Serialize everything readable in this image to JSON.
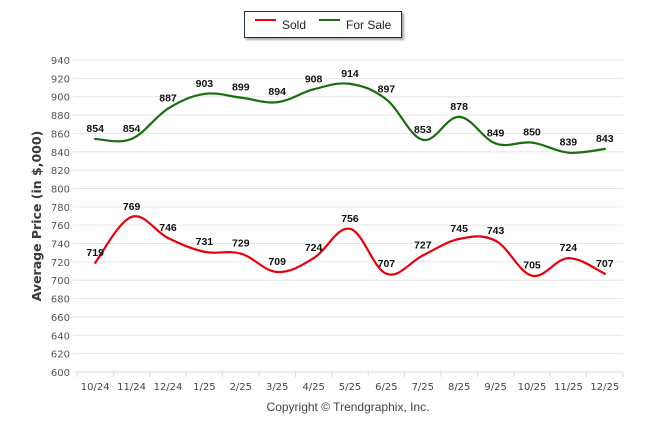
{
  "chart_data": {
    "type": "line",
    "title": "",
    "xlabel": "",
    "ylabel": "Average Price (in $,000)",
    "ylim": [
      600,
      940
    ],
    "yticks": [
      600,
      620,
      640,
      660,
      680,
      700,
      720,
      740,
      760,
      780,
      800,
      820,
      840,
      860,
      880,
      900,
      920,
      940
    ],
    "grid": true,
    "legend_position": "top-center",
    "categories": [
      "10/24",
      "11/24",
      "12/24",
      "1/25",
      "2/25",
      "3/25",
      "4/25",
      "5/25",
      "6/25",
      "7/25",
      "8/25",
      "9/25",
      "10/25",
      "11/25",
      "12/25"
    ],
    "series": [
      {
        "name": "Sold",
        "color": "#e8000b",
        "values": [
          719,
          769,
          746,
          731,
          729,
          709,
          724,
          756,
          707,
          727,
          745,
          743,
          705,
          724,
          707
        ]
      },
      {
        "name": "For Sale",
        "color": "#1a6e10",
        "values": [
          854,
          854,
          887,
          903,
          899,
          894,
          908,
          914,
          897,
          853,
          878,
          849,
          850,
          839,
          843
        ]
      }
    ]
  },
  "legend": {
    "items": [
      {
        "label": "Sold",
        "color": "#e8000b"
      },
      {
        "label": "For Sale",
        "color": "#1a6e10"
      }
    ]
  },
  "footer": {
    "copyright": "Copyright © Trendgraphix, Inc."
  }
}
